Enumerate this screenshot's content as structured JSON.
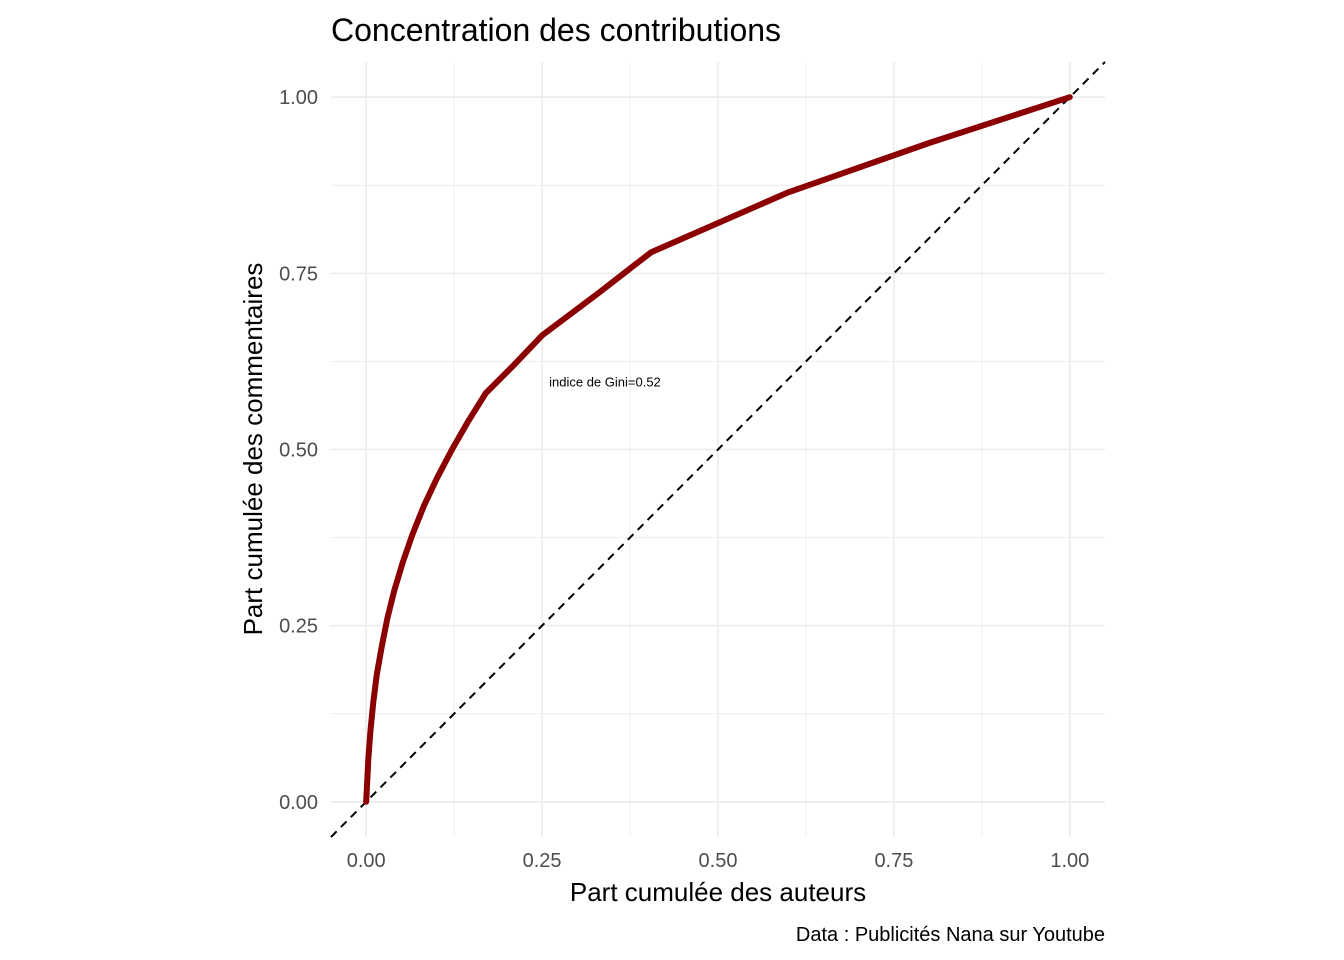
{
  "chart_data": {
    "type": "line",
    "title": "Concentration des contributions",
    "xlabel": "Part cumulée des auteurs",
    "ylabel": "Part cumulée des commentaires",
    "caption": "Data : Publicités Nana sur Youtube",
    "annotation": "indice de Gini=0.52",
    "xlim": [
      -0.05,
      1.05
    ],
    "ylim": [
      -0.05,
      1.05
    ],
    "x_ticks": [
      "0.00",
      "0.25",
      "0.50",
      "0.75",
      "1.00"
    ],
    "y_ticks": [
      "0.00",
      "0.25",
      "0.50",
      "0.75",
      "1.00"
    ],
    "grid": true,
    "annotation_position": {
      "x": 0.26,
      "y": 0.595
    },
    "colors": {
      "curve": "#8b0000",
      "diagonal": "#000000",
      "grid": "#ebebeb"
    },
    "series": [
      {
        "values": [
          [
            0.0,
            0.0
          ],
          [
            0.001,
            0.02
          ],
          [
            0.003,
            0.06
          ],
          [
            0.006,
            0.1
          ],
          [
            0.01,
            0.14
          ],
          [
            0.015,
            0.18
          ],
          [
            0.022,
            0.22
          ],
          [
            0.03,
            0.26
          ],
          [
            0.04,
            0.3
          ],
          [
            0.052,
            0.34
          ],
          [
            0.066,
            0.38
          ],
          [
            0.082,
            0.42
          ],
          [
            0.101,
            0.46
          ],
          [
            0.122,
            0.5
          ],
          [
            0.145,
            0.54
          ],
          [
            0.17,
            0.58
          ],
          [
            0.21,
            0.62
          ],
          [
            0.25,
            0.662
          ],
          [
            0.33,
            0.722
          ],
          [
            0.405,
            0.78
          ],
          [
            0.6,
            0.865
          ],
          [
            0.8,
            0.935
          ],
          [
            1.0,
            1.0
          ]
        ]
      }
    ],
    "reference_line": {
      "style": "dashed",
      "from": [
        -0.05,
        -0.05
      ],
      "to": [
        1.05,
        1.05
      ]
    }
  }
}
